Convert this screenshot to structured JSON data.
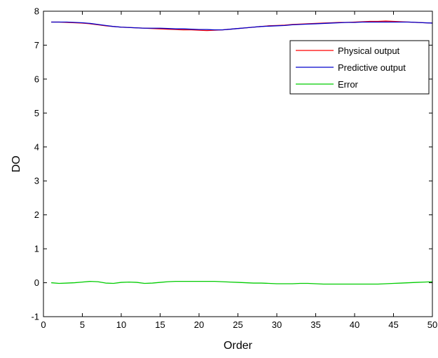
{
  "chart_data": {
    "type": "line",
    "xlabel": "Order",
    "ylabel": "DO",
    "xlim": [
      0,
      50
    ],
    "ylim": [
      -1,
      8
    ],
    "xticks": [
      0,
      5,
      10,
      15,
      20,
      25,
      30,
      35,
      40,
      45,
      50
    ],
    "yticks": [
      -1,
      0,
      1,
      2,
      3,
      4,
      5,
      6,
      7,
      8
    ],
    "grid": false,
    "legend_position": "top-right",
    "x": [
      1,
      2,
      3,
      4,
      5,
      6,
      7,
      8,
      9,
      10,
      11,
      12,
      13,
      14,
      15,
      16,
      17,
      18,
      19,
      20,
      21,
      22,
      23,
      24,
      25,
      26,
      27,
      28,
      29,
      30,
      31,
      32,
      33,
      34,
      35,
      36,
      37,
      38,
      39,
      40,
      41,
      42,
      43,
      44,
      45,
      46,
      47,
      48,
      49,
      50
    ],
    "series": [
      {
        "name": "Physical output",
        "color": "#ff0000",
        "values": [
          7.68,
          7.68,
          7.67,
          7.66,
          7.65,
          7.63,
          7.6,
          7.57,
          7.55,
          7.53,
          7.52,
          7.51,
          7.5,
          7.49,
          7.48,
          7.47,
          7.46,
          7.45,
          7.45,
          7.44,
          7.43,
          7.44,
          7.45,
          7.47,
          7.49,
          7.51,
          7.53,
          7.55,
          7.57,
          7.58,
          7.59,
          7.61,
          7.62,
          7.63,
          7.64,
          7.65,
          7.66,
          7.67,
          7.67,
          7.68,
          7.69,
          7.7,
          7.7,
          7.71,
          7.7,
          7.69,
          7.68,
          7.67,
          7.66,
          7.65
        ]
      },
      {
        "name": "Predictive output",
        "color": "#0000cc",
        "values": [
          7.68,
          7.68,
          7.68,
          7.67,
          7.66,
          7.64,
          7.61,
          7.58,
          7.55,
          7.53,
          7.52,
          7.51,
          7.5,
          7.5,
          7.5,
          7.49,
          7.48,
          7.48,
          7.47,
          7.46,
          7.46,
          7.45,
          7.45,
          7.47,
          7.49,
          7.51,
          7.53,
          7.55,
          7.56,
          7.57,
          7.58,
          7.6,
          7.61,
          7.62,
          7.63,
          7.64,
          7.65,
          7.66,
          7.67,
          7.67,
          7.68,
          7.68,
          7.68,
          7.68,
          7.68,
          7.68,
          7.68,
          7.67,
          7.66,
          7.65
        ]
      },
      {
        "name": "Error",
        "color": "#00cc00",
        "values": [
          0.0,
          -0.02,
          -0.01,
          0.0,
          0.02,
          0.04,
          0.03,
          -0.01,
          -0.02,
          0.01,
          0.02,
          0.01,
          -0.02,
          -0.01,
          0.01,
          0.03,
          0.04,
          0.04,
          0.04,
          0.04,
          0.04,
          0.04,
          0.03,
          0.02,
          0.01,
          0.0,
          -0.01,
          -0.01,
          -0.02,
          -0.03,
          -0.03,
          -0.03,
          -0.02,
          -0.02,
          -0.03,
          -0.04,
          -0.04,
          -0.04,
          -0.04,
          -0.04,
          -0.04,
          -0.04,
          -0.04,
          -0.03,
          -0.02,
          -0.01,
          0.0,
          0.01,
          0.02,
          0.03
        ]
      }
    ]
  }
}
